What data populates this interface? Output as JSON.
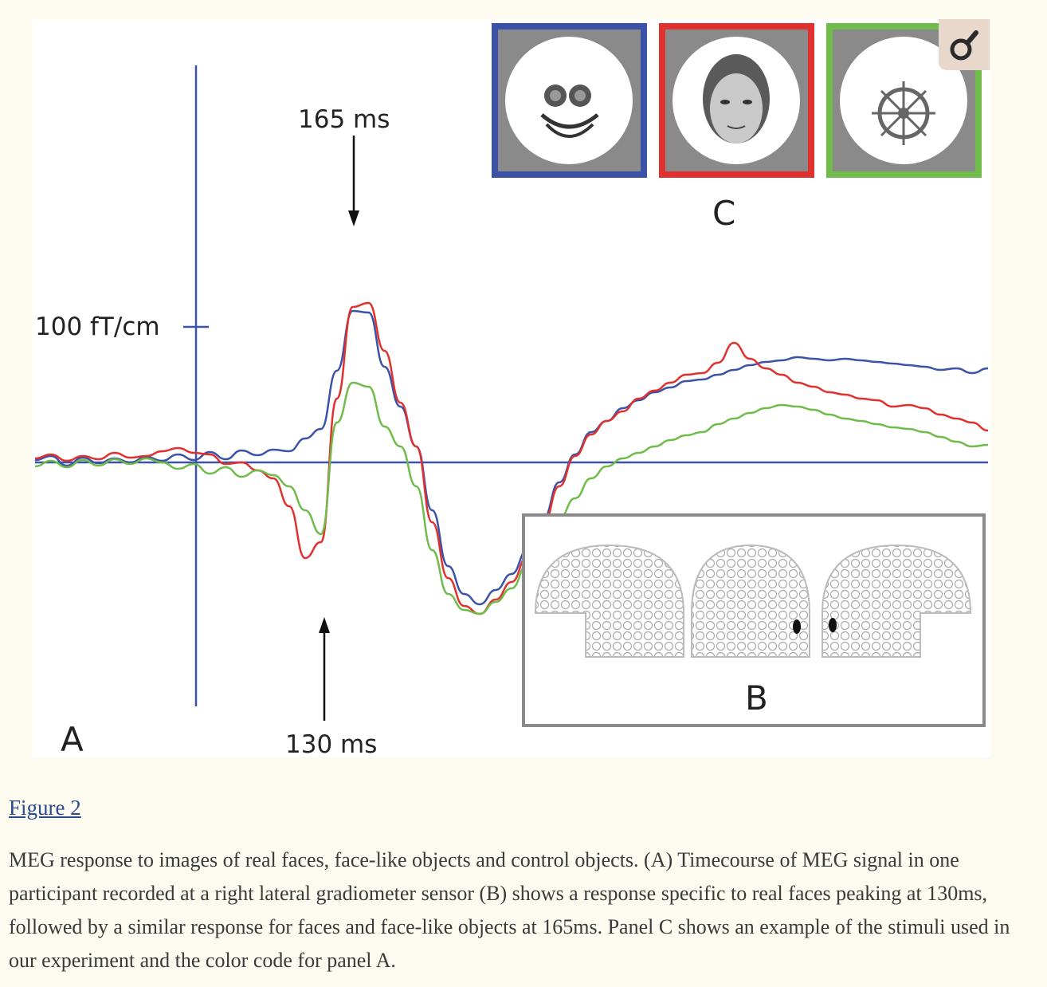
{
  "figure": {
    "labels": {
      "panel_a": "A",
      "panel_b": "B",
      "panel_c": "C",
      "scale": "100 fT/cm",
      "arrow_top": "165 ms",
      "arrow_bottom": "130 ms"
    },
    "colors": {
      "face_like": "#3b52a8",
      "real_face": "#e0312f",
      "control": "#6fbc4a",
      "axis": "#3b52a8"
    },
    "chart_data": {
      "type": "line",
      "series": [
        {
          "color": "#3b52a8",
          "values": [
            3,
            8,
            -4,
            6,
            -1,
            5,
            0,
            7,
            2,
            10,
            3,
            13,
            4,
            15,
            9,
            16,
            14,
            30,
            42,
            115,
            190,
            188,
            120,
            70,
            20,
            -60,
            -130,
            -165,
            -178,
            -160,
            -140,
            -110,
            -70,
            -25,
            10,
            38,
            52,
            68,
            78,
            88,
            94,
            102,
            104,
            110,
            116,
            122,
            126,
            128,
            132,
            130,
            128,
            130,
            128,
            126,
            124,
            122,
            120,
            116,
            118,
            112,
            118
          ]
        },
        {
          "color": "#e0312f",
          "values": [
            5,
            10,
            2,
            8,
            4,
            12,
            6,
            8,
            14,
            18,
            12,
            10,
            -2,
            0,
            -10,
            -20,
            -55,
            -120,
            -100,
            80,
            195,
            200,
            140,
            75,
            20,
            -75,
            -145,
            -180,
            -190,
            -172,
            -150,
            -118,
            -78,
            -30,
            8,
            35,
            52,
            64,
            80,
            90,
            100,
            110,
            112,
            125,
            150,
            130,
            118,
            110,
            100,
            95,
            88,
            85,
            80,
            78,
            70,
            72,
            68,
            60,
            55,
            50,
            40
          ]
        },
        {
          "color": "#6fbc4a",
          "values": [
            -5,
            2,
            -6,
            3,
            -4,
            4,
            -2,
            5,
            0,
            -8,
            -2,
            -14,
            -6,
            -18,
            -10,
            -16,
            -30,
            -60,
            -90,
            50,
            100,
            95,
            45,
            20,
            -30,
            -110,
            -165,
            -185,
            -190,
            -175,
            -158,
            -128,
            -100,
            -70,
            -45,
            -20,
            -5,
            5,
            12,
            20,
            28,
            34,
            38,
            48,
            55,
            62,
            68,
            72,
            70,
            66,
            60,
            55,
            52,
            48,
            44,
            42,
            38,
            32,
            26,
            20,
            22
          ]
        }
      ]
    }
  },
  "link_text": "Figure 2",
  "caption": "MEG response to images of real faces, face-like objects and control objects. (A) Timecourse of MEG signal in one participant recorded at a right lateral gradiometer sensor (B) shows a response specific to real faces peaking at 130ms, followed by a similar response for faces and face-like objects at 165ms. Panel C shows an example of the stimuli used in our experiment and the color code for panel A."
}
